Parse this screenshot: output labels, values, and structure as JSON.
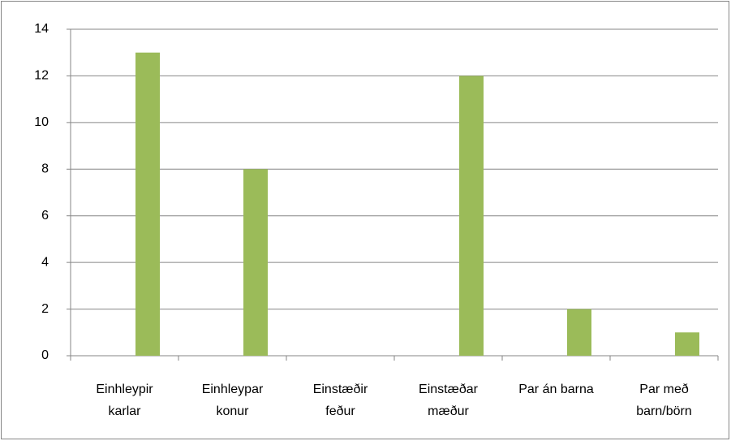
{
  "chart_data": {
    "type": "bar",
    "categories": [
      "Einhleypir\nkarlar",
      "Einhleypar\nkonur",
      "Einstæðir\nfeður",
      "Einstæðar\nmæður",
      "Par án barna",
      "Par með\nbarn/börn"
    ],
    "values": [
      13,
      8,
      0,
      12,
      2,
      1
    ],
    "color": "#9bbb59",
    "ylim": [
      0,
      14
    ],
    "yticks": [
      0,
      2,
      4,
      6,
      8,
      10,
      12,
      14
    ],
    "grid": true
  }
}
